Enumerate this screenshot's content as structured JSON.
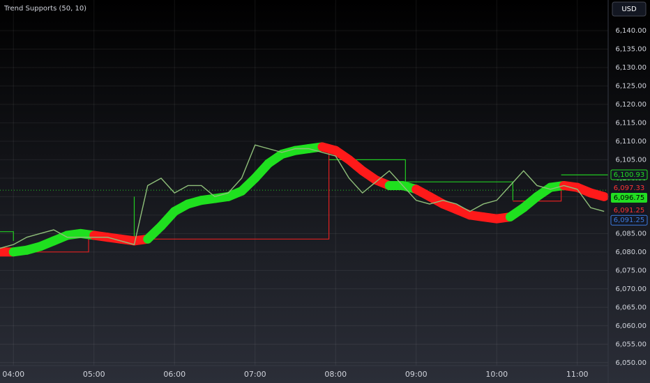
{
  "chart_data": {
    "type": "line",
    "title": "Trend Supports (50, 10)",
    "currency": "USD",
    "xlim": [
      "03:50",
      "11:23"
    ],
    "ylim": [
      6049.2,
      6148.3
    ],
    "grid": true,
    "xticks": [
      "04:00",
      "05:00",
      "06:00",
      "07:00",
      "08:00",
      "09:00",
      "10:00",
      "11:00"
    ],
    "yticks": [
      {
        "value": 6050,
        "label": "6,050.00"
      },
      {
        "value": 6055,
        "label": "6,055.00"
      },
      {
        "value": 6060,
        "label": "6,060.00"
      },
      {
        "value": 6065,
        "label": "6,065.00"
      },
      {
        "value": 6070,
        "label": "6,070.00"
      },
      {
        "value": 6075,
        "label": "6,075.00"
      },
      {
        "value": 6080,
        "label": "6,080.00"
      },
      {
        "value": 6085,
        "label": "6,085.00"
      },
      {
        "value": 6090,
        "label": "6,090.00"
      },
      {
        "value": 6095,
        "label": "6,095.00"
      },
      {
        "value": 6100,
        "label": "6,100.00"
      },
      {
        "value": 6105,
        "label": "6,105.00"
      },
      {
        "value": 6110,
        "label": "6,110.00"
      },
      {
        "value": 6115,
        "label": "6,115.00"
      },
      {
        "value": 6120,
        "label": "6,120.00"
      },
      {
        "value": 6125,
        "label": "6,125.00"
      },
      {
        "value": 6130,
        "label": "6,130.00"
      },
      {
        "value": 6135,
        "label": "6,135.00"
      },
      {
        "value": 6140,
        "label": "6,140.00"
      }
    ],
    "x": [
      "03:50",
      "04:00",
      "04:10",
      "04:20",
      "04:30",
      "04:40",
      "04:50",
      "05:00",
      "05:10",
      "05:20",
      "05:30",
      "05:40",
      "05:50",
      "06:00",
      "06:10",
      "06:20",
      "06:30",
      "06:40",
      "06:50",
      "07:00",
      "07:10",
      "07:20",
      "07:30",
      "07:40",
      "07:50",
      "08:00",
      "08:10",
      "08:20",
      "08:30",
      "08:40",
      "08:50",
      "09:00",
      "09:10",
      "09:20",
      "09:30",
      "09:40",
      "09:50",
      "10:00",
      "10:10",
      "10:20",
      "10:30",
      "10:40",
      "10:50",
      "11:00",
      "11:10",
      "11:20"
    ],
    "price": {
      "color": "#8fbf7a",
      "values": [
        6081,
        6082,
        6084,
        6085,
        6086,
        6084,
        6084,
        6084,
        6084,
        6083,
        6082,
        6098,
        6100,
        6096,
        6098,
        6098,
        6095,
        6096,
        6100,
        6109,
        6108,
        6107,
        6108,
        6108,
        6107,
        6106,
        6100,
        6096,
        6099,
        6102,
        6098,
        6094,
        6093,
        6094,
        6093,
        6091,
        6093,
        6094,
        6098,
        6102,
        6098,
        6097,
        6098,
        6097,
        6092,
        6091
      ]
    },
    "trend": {
      "values": [
        6080,
        6080,
        6080.5,
        6081.5,
        6083,
        6084.5,
        6085,
        6084.5,
        6084,
        6083.5,
        6083,
        6083.5,
        6087,
        6091,
        6093,
        6094,
        6094.5,
        6095,
        6096.5,
        6100,
        6104,
        6106.5,
        6107.5,
        6108,
        6108.5,
        6107.5,
        6105,
        6102,
        6099.5,
        6098,
        6098,
        6097,
        6095,
        6093,
        6091.5,
        6090,
        6089.5,
        6089,
        6089.5,
        6092,
        6095,
        6097.5,
        6098,
        6097.5,
        6096,
        6095
      ],
      "colors": [
        "#ff1a1a",
        "#1fe01f",
        "#1fe01f",
        "#1fe01f",
        "#1fe01f",
        "#1fe01f",
        "#1fe01f",
        "#ff1a1a",
        "#ff1a1a",
        "#ff1a1a",
        "#ff1a1a",
        "#1fe01f",
        "#1fe01f",
        "#1fe01f",
        "#1fe01f",
        "#1fe01f",
        "#1fe01f",
        "#1fe01f",
        "#1fe01f",
        "#1fe01f",
        "#1fe01f",
        "#1fe01f",
        "#1fe01f",
        "#1fe01f",
        "#ff1a1a",
        "#ff1a1a",
        "#ff1a1a",
        "#ff1a1a",
        "#ff1a1a",
        "#1fe01f",
        "#1fe01f",
        "#ff1a1a",
        "#ff1a1a",
        "#ff1a1a",
        "#ff1a1a",
        "#ff1a1a",
        "#ff1a1a",
        "#ff1a1a",
        "#1fe01f",
        "#1fe01f",
        "#1fe01f",
        "#1fe01f",
        "#ff1a1a",
        "#ff1a1a",
        "#ff1a1a",
        "#ff1a1a"
      ]
    },
    "supports": [
      {
        "color": "#e02020",
        "x": [
          "03:50",
          "04:56",
          "04:56",
          null,
          "05:30",
          "07:55",
          "07:55",
          null,
          "10:12",
          "10:48",
          "10:48"
        ],
        "values": [
          6080,
          6080,
          6084.5,
          null,
          6083.5,
          6083.5,
          6107.7,
          null,
          6093.8,
          6093.8,
          6098
        ]
      },
      {
        "color": "#22cc22",
        "x": [
          "03:50",
          "04:00",
          "04:00",
          null,
          "05:30",
          "05:30",
          null,
          "07:55",
          "08:52",
          "08:52",
          "10:12",
          "10:12",
          null,
          "10:48",
          "11:23"
        ],
        "values": [
          6085.5,
          6085.5,
          6083,
          null,
          6083.5,
          6095,
          null,
          6105,
          6105,
          6099,
          6099,
          6094,
          null,
          6100.9,
          6100.9
        ]
      }
    ],
    "last_price": {
      "value": 6096.75,
      "color": "#22cc22"
    },
    "tags": [
      {
        "value": 6100.93,
        "label": "6,100.93",
        "color": "#22dd22",
        "style": "outline"
      },
      {
        "value": 6097.33,
        "label": "6,097.33",
        "color": "#ff3333",
        "style": "text"
      },
      {
        "value": 6096.75,
        "label": "6,096.75",
        "color": "#22dd22",
        "style": "fill"
      },
      {
        "value": 6091.25,
        "label": "6,091.25",
        "color": "#ff3333",
        "style": "text"
      },
      {
        "value": 6091.25,
        "label": "6,091.25",
        "color": "#3d7be0",
        "style": "outline"
      }
    ]
  }
}
